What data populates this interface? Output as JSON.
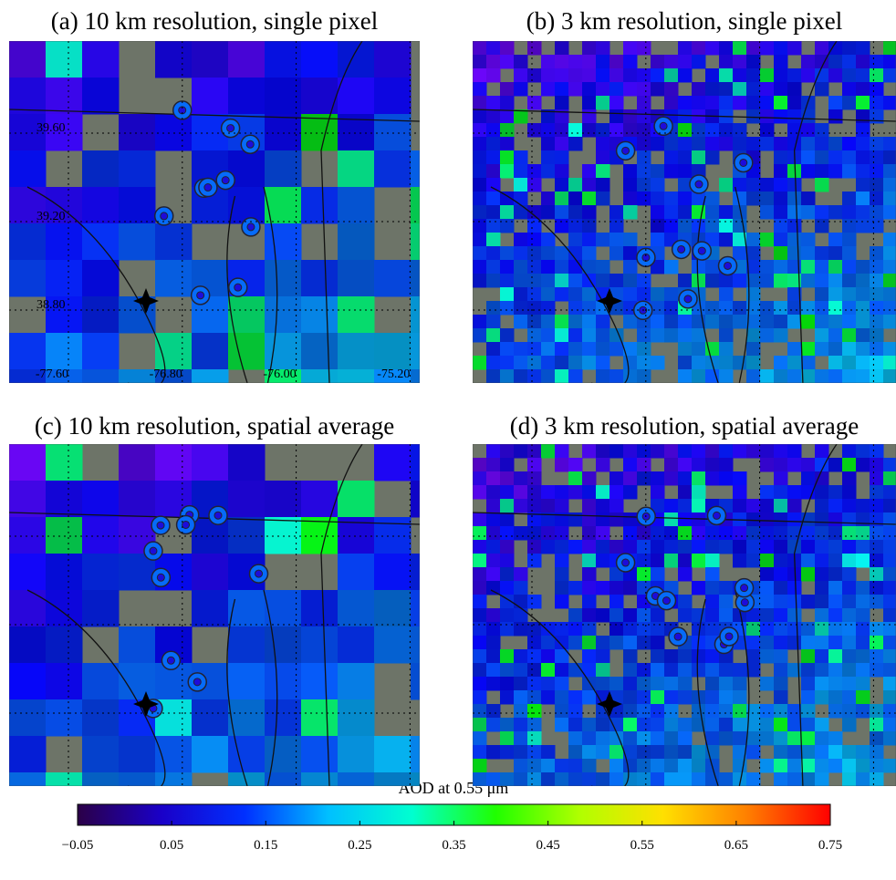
{
  "panels": [
    {
      "title": "(a) 10 km resolution, single pixel"
    },
    {
      "title": "(b) 3 km resolution, single pixel"
    },
    {
      "title": "(c) 10 km resolution, spatial average"
    },
    {
      "title": "(d) 3 km resolution, spatial average"
    }
  ],
  "map_axes": {
    "lat_ticks": [
      {
        "value": 39.6,
        "label": "39.60"
      },
      {
        "value": 39.2,
        "label": "39.20"
      },
      {
        "value": 38.8,
        "label": "38.80"
      }
    ],
    "lon_ticks": [
      {
        "value": -77.6,
        "label": "-77.60"
      },
      {
        "value": -76.8,
        "label": "-76.80"
      },
      {
        "value": -76.0,
        "label": "-76.00"
      },
      {
        "value": -75.2,
        "label": "-75.20"
      }
    ]
  },
  "chart_data": {
    "type": "colorbar",
    "title": "AOD at 0.55 μm",
    "xlim": [
      -0.05,
      0.75
    ],
    "xticks": [
      {
        "value": -0.05,
        "label": "−0.05"
      },
      0.05,
      0.15,
      0.25,
      0.35,
      0.45,
      0.55,
      0.65,
      0.75
    ],
    "colors": [
      "#2b0047",
      "#1a00c8",
      "#0030ff",
      "#00c0ff",
      "#00ffd0",
      "#20ff00",
      "#b0ff00",
      "#ffe000",
      "#ff8000",
      "#ff0000"
    ]
  }
}
